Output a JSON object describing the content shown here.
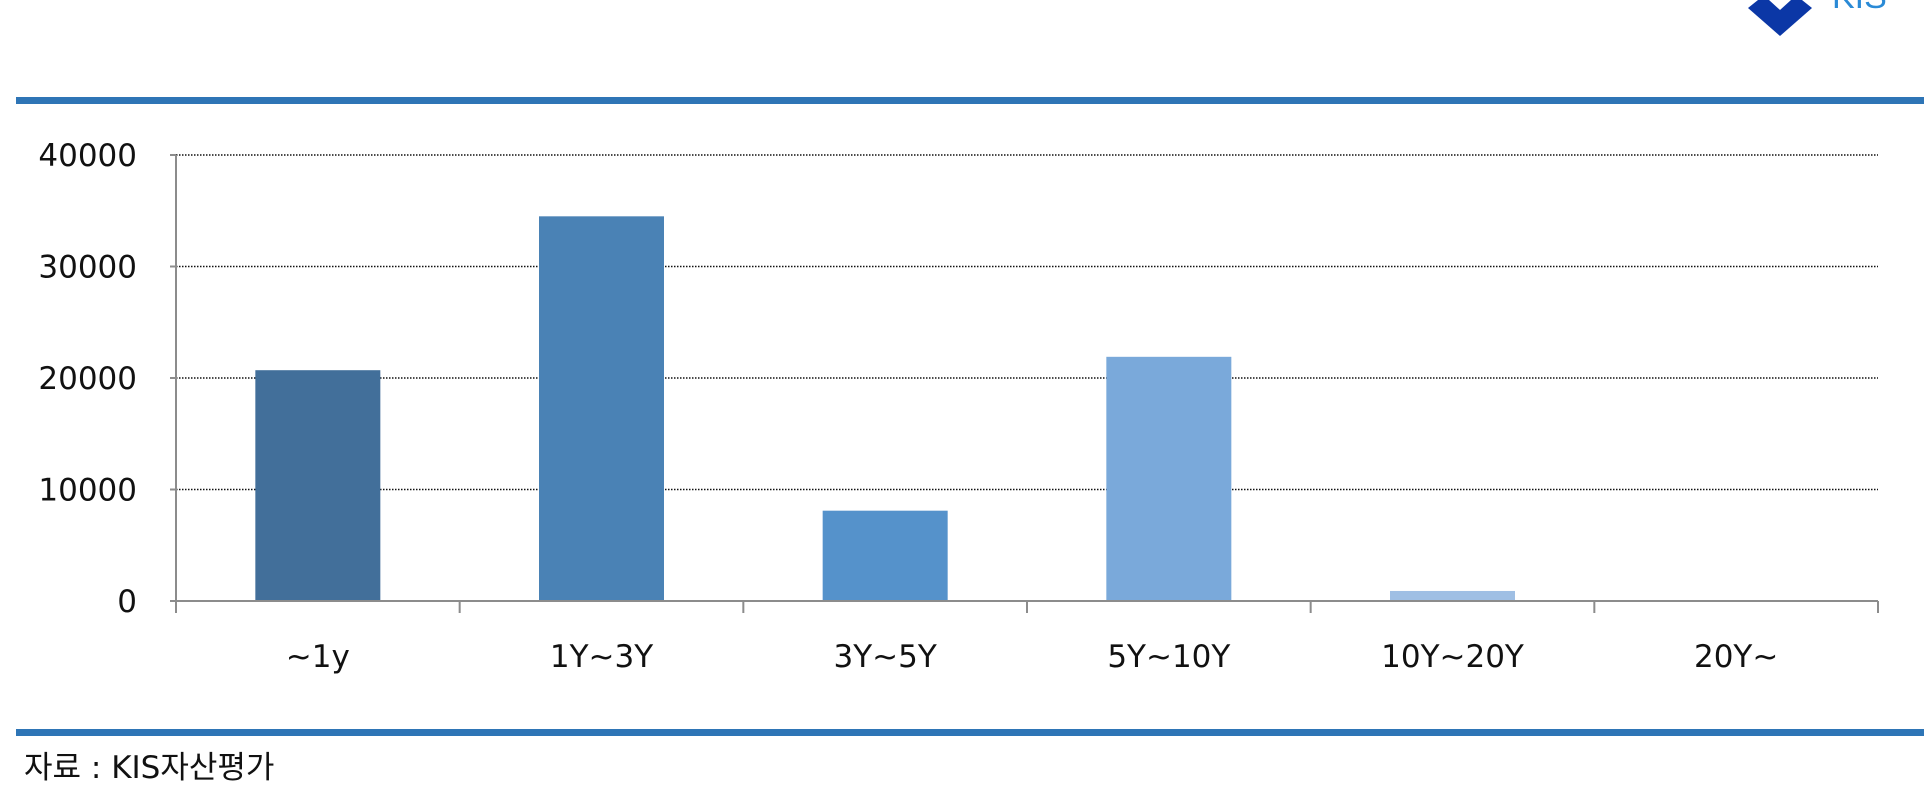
{
  "logo": {
    "text": "KIS"
  },
  "source_note": "자료 : KIS자산평가",
  "colors": {
    "rule": "#2e75b6",
    "logo": "#0b37a6",
    "gridline": "#111111",
    "axis": "#8c8c8c",
    "label": "#111111"
  },
  "chart_data": {
    "type": "bar",
    "categories": [
      "~1y",
      "1Y~3Y",
      "3Y~5Y",
      "5Y~10Y",
      "10Y~20Y",
      "20Y~"
    ],
    "values": [
      20700,
      34500,
      8100,
      21900,
      900,
      0
    ],
    "bar_colors": [
      "#426f9a",
      "#4a82b5",
      "#5592cb",
      "#7aa9da",
      "#9fbfe4",
      "#b8cfea"
    ],
    "ylim": [
      0,
      40000
    ],
    "yticks": [
      0,
      10000,
      20000,
      30000,
      40000
    ],
    "ytick_labels": [
      "0",
      "10000",
      "20000",
      "30000",
      "40000"
    ],
    "grid": true,
    "legend": "none",
    "title": "",
    "xlabel": "",
    "ylabel": ""
  }
}
